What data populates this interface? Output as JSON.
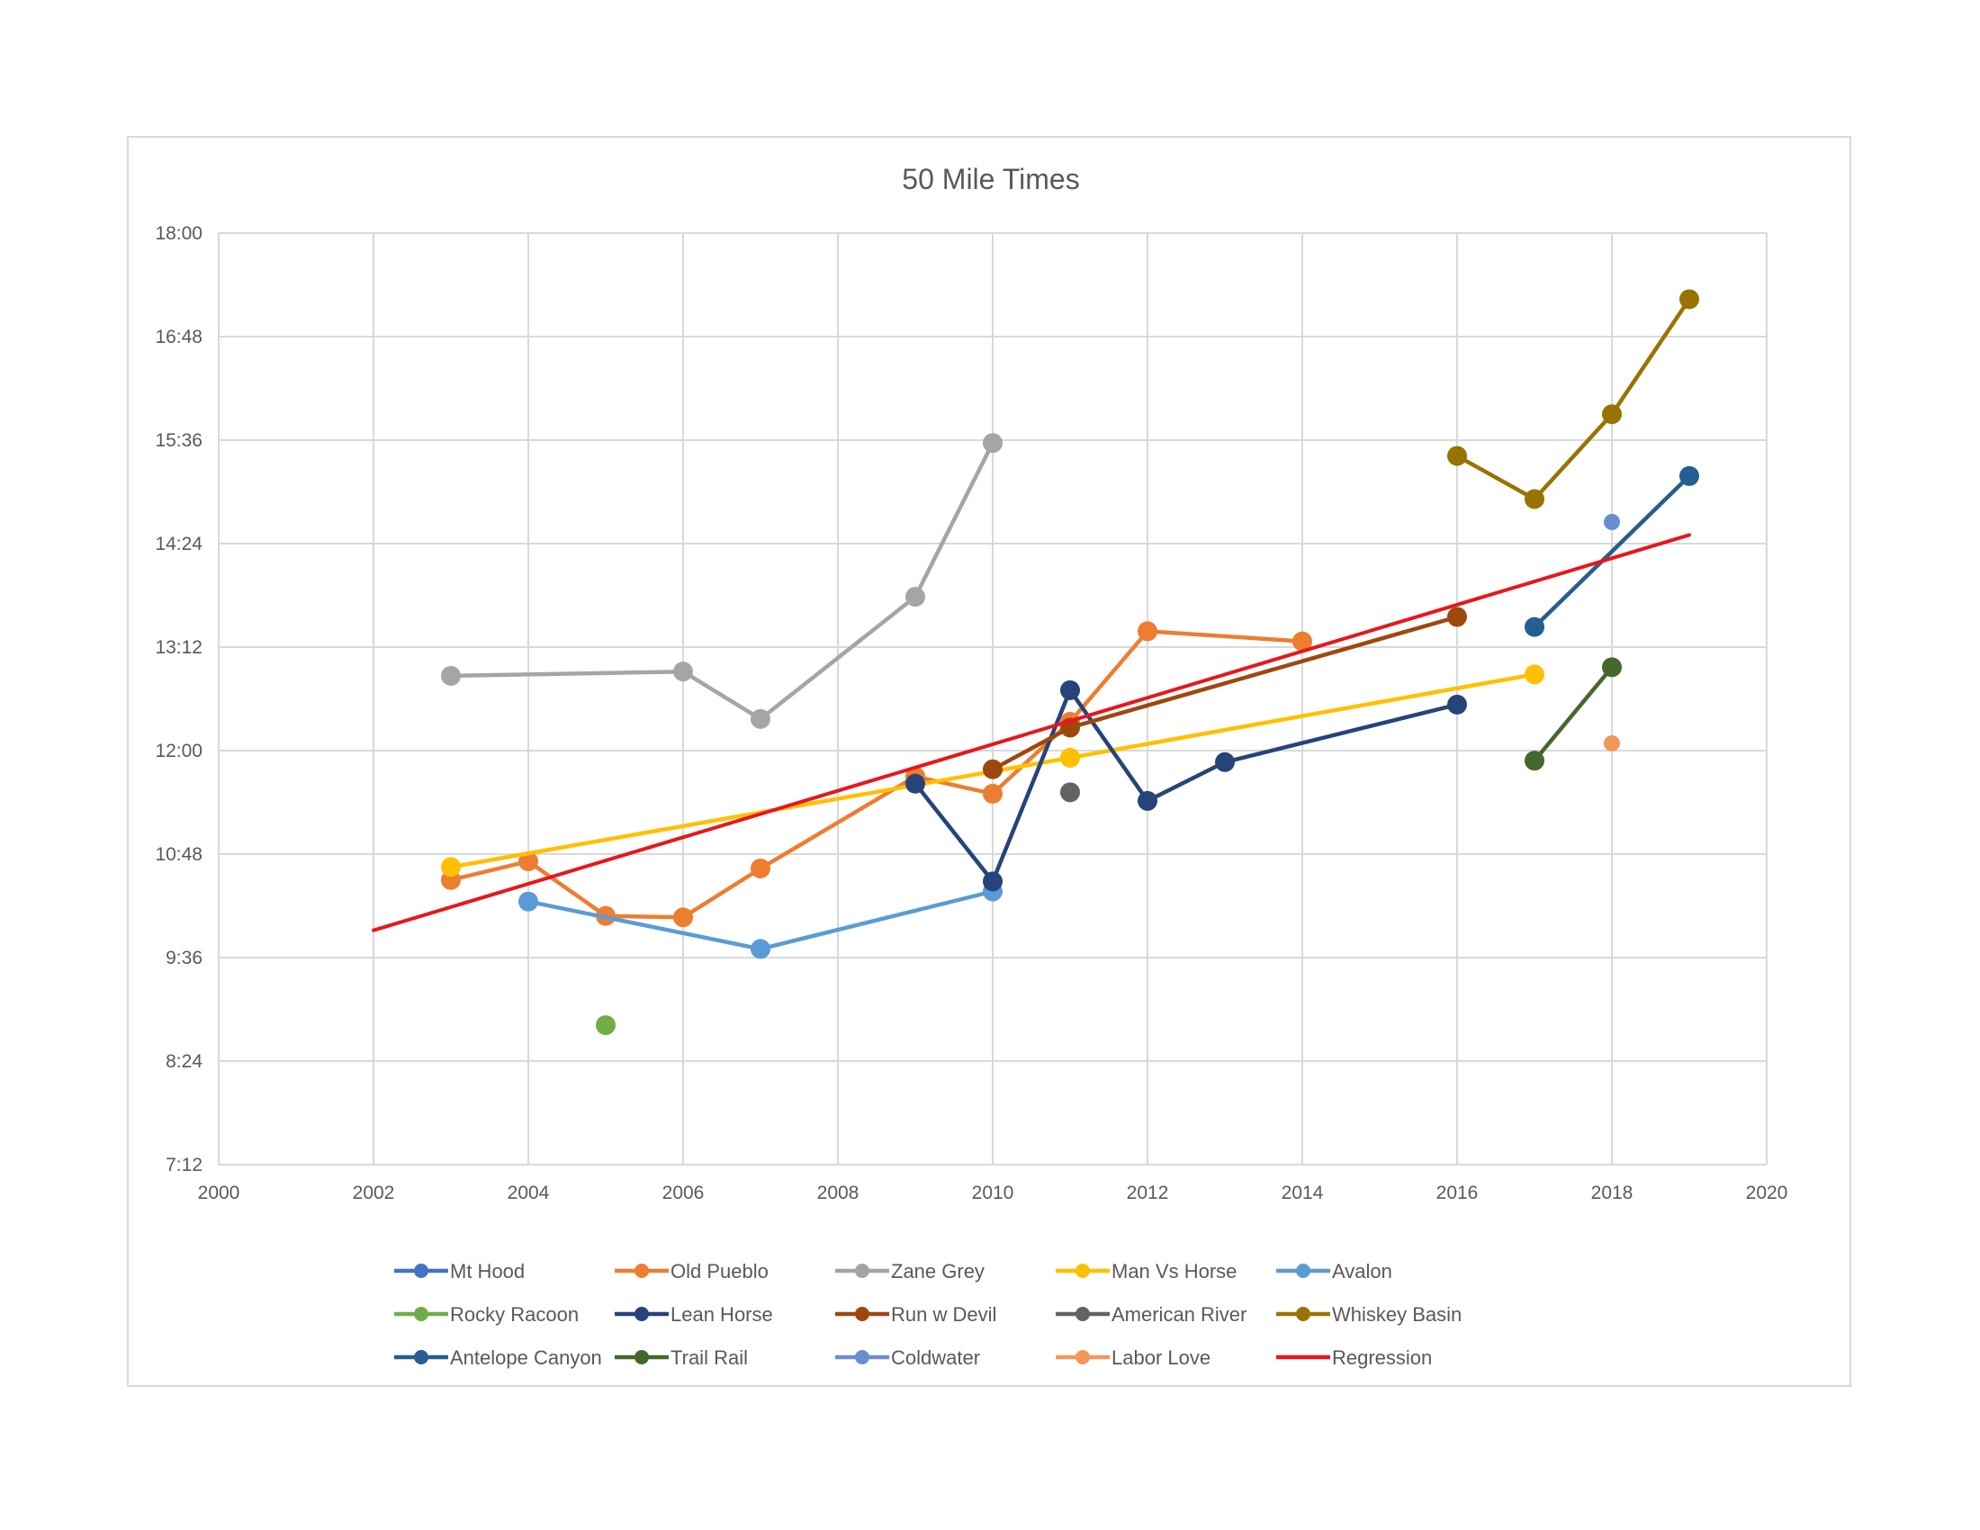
{
  "chart_data": {
    "type": "line",
    "title": "50 Mile Times",
    "xlabel": "",
    "ylabel": "",
    "xlim": [
      2000,
      2020
    ],
    "ylim_minutes": [
      432,
      1080
    ],
    "x_ticks": [
      "2000",
      "2002",
      "2004",
      "2006",
      "2008",
      "2010",
      "2012",
      "2014",
      "2016",
      "2018",
      "2020"
    ],
    "y_ticks": [
      "7:12",
      "8:24",
      "9:36",
      "10:48",
      "12:00",
      "13:12",
      "14:24",
      "15:36",
      "16:48",
      "18:00"
    ],
    "grid": true,
    "legend_position": "bottom",
    "series": [
      {
        "name": "Mt Hood",
        "color": "#4472c4",
        "points": []
      },
      {
        "name": "Old Pueblo",
        "color": "#ed7d31",
        "points": [
          [
            2003,
            630
          ],
          [
            2004,
            643
          ],
          [
            2005,
            605
          ],
          [
            2006,
            604
          ],
          [
            2007,
            638
          ],
          [
            2009,
            702
          ],
          [
            2010,
            690
          ],
          [
            2011,
            740
          ],
          [
            2012,
            803
          ],
          [
            2014,
            796
          ]
        ]
      },
      {
        "name": "Zane Grey",
        "color": "#a5a5a5",
        "points": [
          [
            2003,
            772
          ],
          [
            2006,
            775
          ],
          [
            2007,
            742
          ],
          [
            2009,
            827
          ],
          [
            2010,
            934
          ]
        ]
      },
      {
        "name": "Man Vs Horse",
        "color": "#ffc000",
        "points": [
          [
            2003,
            639
          ],
          [
            2011,
            715
          ],
          [
            2017,
            773
          ]
        ]
      },
      {
        "name": "Avalon",
        "color": "#5b9bd5",
        "points": [
          [
            2004,
            615
          ],
          [
            2007,
            582
          ],
          [
            2010,
            622
          ]
        ]
      },
      {
        "name": "Rocky Racoon",
        "color": "#70ad47",
        "points": [
          [
            2005,
            529
          ]
        ]
      },
      {
        "name": "Lean Horse",
        "color": "#264478",
        "points": [
          [
            2009,
            697
          ],
          [
            2010,
            629
          ],
          [
            2011,
            762
          ],
          [
            2012,
            685
          ],
          [
            2013,
            712
          ],
          [
            2016,
            752
          ]
        ]
      },
      {
        "name": "Run w Devil",
        "color": "#9e480e",
        "points": [
          [
            2010,
            707
          ],
          [
            2011,
            736
          ],
          [
            2016,
            813
          ]
        ]
      },
      {
        "name": "American River",
        "color": "#636363",
        "points": [
          [
            2011,
            691
          ]
        ]
      },
      {
        "name": "Whiskey Basin",
        "color": "#997300",
        "points": [
          [
            2016,
            925
          ],
          [
            2017,
            895
          ],
          [
            2018,
            954
          ],
          [
            2019,
            1034
          ]
        ]
      },
      {
        "name": "Antelope Canyon",
        "color": "#255e91",
        "points": [
          [
            2017,
            806
          ],
          [
            2019,
            911
          ]
        ]
      },
      {
        "name": "Trail Rail",
        "color": "#43682b",
        "points": [
          [
            2017,
            713
          ],
          [
            2018,
            778
          ]
        ]
      },
      {
        "name": "Coldwater",
        "color": "#698ed0",
        "points": [
          [
            2018,
            879
          ]
        ]
      },
      {
        "name": "Labor Love",
        "color": "#f1975a",
        "points": [
          [
            2018,
            725
          ]
        ]
      },
      {
        "name": "Regression",
        "color": "#e8161b",
        "points": [
          [
            2002,
            595
          ],
          [
            2019,
            870
          ]
        ]
      }
    ]
  }
}
